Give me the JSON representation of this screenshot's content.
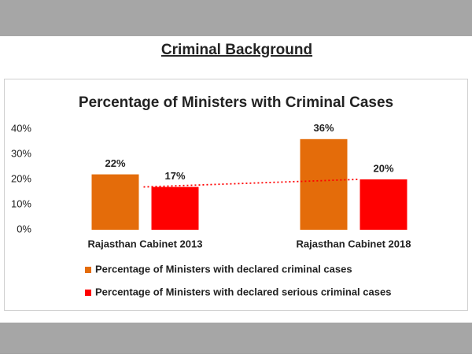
{
  "heading": "Criminal Background",
  "chart_data": {
    "type": "bar",
    "title": "Percentage of Ministers with Criminal Cases",
    "categories": [
      "Rajasthan Cabinet 2013",
      "Rajasthan Cabinet 2018"
    ],
    "series": [
      {
        "name": "Percentage  of Ministers with declared criminal cases",
        "color": "#e46c0a",
        "values": [
          22,
          36
        ],
        "value_labels": [
          "22%",
          "36%"
        ]
      },
      {
        "name": "Percentage of Ministers with declared serious criminal cases",
        "color": "#ff0000",
        "values": [
          17,
          20
        ],
        "value_labels": [
          "17%",
          "20%"
        ],
        "trendline": true
      }
    ],
    "ylim": [
      0,
      40
    ],
    "yticks": [
      {
        "value": 0,
        "label": "0%"
      },
      {
        "value": 10,
        "label": "10%"
      },
      {
        "value": 20,
        "label": "20%"
      },
      {
        "value": 30,
        "label": "30%"
      },
      {
        "value": 40,
        "label": "40%"
      }
    ],
    "grid": false,
    "legend": "bottom"
  }
}
